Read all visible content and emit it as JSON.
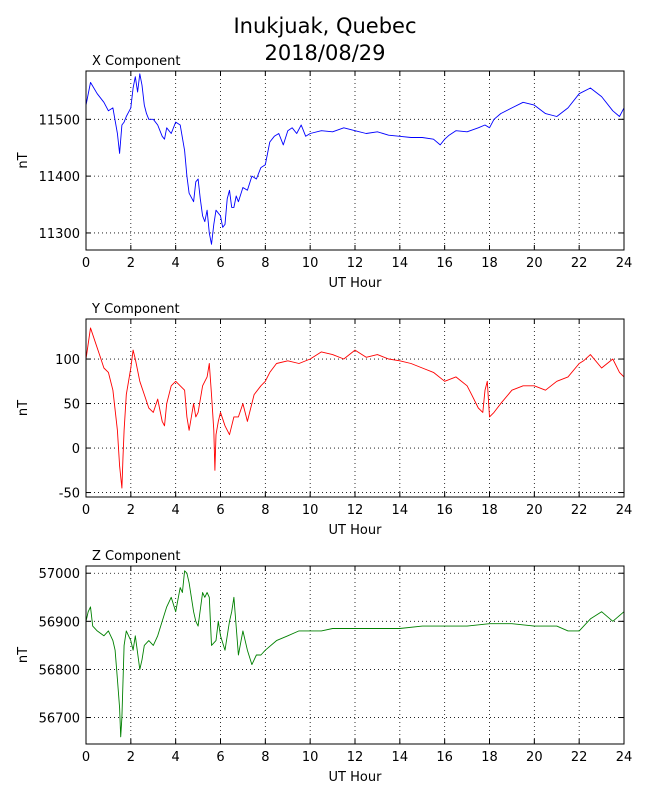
{
  "figure": {
    "title_line1": "Inukjuak, Quebec",
    "title_line2": "2018/08/29"
  },
  "chart_data": [
    {
      "type": "line",
      "title": "X Component",
      "xlabel": "UT Hour",
      "ylabel": "nT",
      "color": "#0000ff",
      "xlim": [
        0,
        24
      ],
      "ylim": [
        11270,
        11585
      ],
      "xticks": [
        0,
        2,
        4,
        6,
        8,
        10,
        12,
        14,
        16,
        18,
        20,
        22,
        24
      ],
      "yticks": [
        11300,
        11400,
        11500
      ],
      "grid": true,
      "series": [
        {
          "x": [
            0,
            0.2,
            0.5,
            0.8,
            1.0,
            1.2,
            1.4,
            1.5,
            1.6,
            1.7,
            1.8,
            2.0,
            2.1,
            2.2,
            2.3,
            2.4,
            2.5,
            2.6,
            2.7,
            2.8,
            3.0,
            3.2,
            3.4,
            3.5,
            3.6,
            3.8,
            4.0,
            4.2,
            4.4,
            4.5,
            4.6,
            4.8,
            4.9,
            5.0,
            5.1,
            5.2,
            5.3,
            5.4,
            5.5,
            5.6,
            5.7,
            5.8,
            6.0,
            6.1,
            6.2,
            6.3,
            6.4,
            6.5,
            6.6,
            6.7,
            6.8,
            7.0,
            7.2,
            7.4,
            7.6,
            7.8,
            8.0,
            8.2,
            8.4,
            8.6,
            8.8,
            9.0,
            9.2,
            9.4,
            9.6,
            9.8,
            10.0,
            10.5,
            11.0,
            11.5,
            12.0,
            12.5,
            13.0,
            13.5,
            14.0,
            14.5,
            15.0,
            15.5,
            15.8,
            16.0,
            16.2,
            16.5,
            17.0,
            17.5,
            17.8,
            18.0,
            18.2,
            18.5,
            19.0,
            19.5,
            20.0,
            20.5,
            21.0,
            21.5,
            22.0,
            22.5,
            23.0,
            23.5,
            23.8,
            24.0
          ],
          "y": [
            11525,
            11565,
            11545,
            11530,
            11515,
            11520,
            11475,
            11440,
            11490,
            11495,
            11505,
            11520,
            11555,
            11575,
            11548,
            11580,
            11560,
            11525,
            11510,
            11500,
            11500,
            11490,
            11470,
            11465,
            11485,
            11475,
            11495,
            11490,
            11445,
            11400,
            11370,
            11355,
            11390,
            11395,
            11360,
            11330,
            11320,
            11340,
            11300,
            11280,
            11315,
            11340,
            11330,
            11310,
            11315,
            11360,
            11375,
            11345,
            11345,
            11365,
            11355,
            11380,
            11375,
            11400,
            11395,
            11415,
            11420,
            11460,
            11470,
            11475,
            11455,
            11480,
            11485,
            11475,
            11490,
            11470,
            11475,
            11480,
            11478,
            11485,
            11480,
            11475,
            11478,
            11472,
            11470,
            11468,
            11468,
            11465,
            11455,
            11465,
            11472,
            11480,
            11478,
            11485,
            11490,
            11485,
            11500,
            11510,
            11520,
            11530,
            11525,
            11510,
            11505,
            11520,
            11545,
            11555,
            11540,
            11515,
            11505,
            11520
          ]
        }
      ]
    },
    {
      "type": "line",
      "title": "Y Component",
      "xlabel": "UT Hour",
      "ylabel": "nT",
      "color": "#ff0000",
      "xlim": [
        0,
        24
      ],
      "ylim": [
        -55,
        145
      ],
      "xticks": [
        0,
        2,
        4,
        6,
        8,
        10,
        12,
        14,
        16,
        18,
        20,
        22,
        24
      ],
      "yticks": [
        -50,
        0,
        50,
        100
      ],
      "grid": true,
      "series": [
        {
          "x": [
            0,
            0.2,
            0.4,
            0.6,
            0.8,
            1.0,
            1.2,
            1.4,
            1.5,
            1.6,
            1.65,
            1.7,
            1.8,
            2.0,
            2.1,
            2.2,
            2.4,
            2.6,
            2.8,
            3.0,
            3.2,
            3.4,
            3.5,
            3.6,
            3.8,
            4.0,
            4.2,
            4.4,
            4.5,
            4.6,
            4.8,
            4.9,
            5.0,
            5.2,
            5.4,
            5.5,
            5.6,
            5.7,
            5.75,
            5.8,
            5.9,
            6.0,
            6.2,
            6.4,
            6.6,
            6.8,
            7.0,
            7.2,
            7.5,
            7.8,
            8.0,
            8.2,
            8.5,
            9.0,
            9.5,
            10.0,
            10.5,
            11.0,
            11.5,
            12.0,
            12.5,
            13.0,
            13.5,
            14.0,
            14.5,
            15.0,
            15.5,
            16.0,
            16.5,
            17.0,
            17.2,
            17.5,
            17.7,
            17.8,
            17.9,
            18.0,
            18.2,
            18.5,
            19.0,
            19.5,
            20.0,
            20.5,
            21.0,
            21.5,
            22.0,
            22.2,
            22.5,
            23.0,
            23.5,
            23.8,
            24.0
          ],
          "y": [
            100,
            135,
            120,
            105,
            90,
            85,
            65,
            20,
            -20,
            -45,
            -10,
            20,
            60,
            90,
            110,
            100,
            75,
            60,
            45,
            40,
            55,
            30,
            25,
            50,
            70,
            75,
            70,
            65,
            35,
            20,
            50,
            35,
            40,
            70,
            80,
            95,
            60,
            20,
            -25,
            15,
            30,
            40,
            25,
            15,
            35,
            35,
            50,
            30,
            60,
            70,
            75,
            85,
            95,
            98,
            95,
            100,
            108,
            105,
            100,
            110,
            102,
            105,
            100,
            98,
            95,
            90,
            85,
            75,
            80,
            70,
            60,
            45,
            40,
            65,
            75,
            35,
            40,
            50,
            65,
            70,
            70,
            65,
            75,
            80,
            95,
            98,
            105,
            90,
            100,
            85,
            80
          ]
        }
      ]
    },
    {
      "type": "line",
      "title": "Z Component",
      "xlabel": "UT Hour",
      "ylabel": "nT",
      "color": "#008000",
      "xlim": [
        0,
        24
      ],
      "ylim": [
        56645,
        57015
      ],
      "xticks": [
        0,
        2,
        4,
        6,
        8,
        10,
        12,
        14,
        16,
        18,
        20,
        22,
        24
      ],
      "yticks": [
        56700,
        56800,
        56900,
        57000
      ],
      "grid": true,
      "series": [
        {
          "x": [
            0,
            0.1,
            0.2,
            0.3,
            0.5,
            0.8,
            1.0,
            1.2,
            1.3,
            1.4,
            1.5,
            1.55,
            1.6,
            1.7,
            1.8,
            2.0,
            2.1,
            2.2,
            2.4,
            2.5,
            2.6,
            2.8,
            3.0,
            3.2,
            3.4,
            3.6,
            3.8,
            4.0,
            4.2,
            4.3,
            4.4,
            4.5,
            4.6,
            4.8,
            4.9,
            5.0,
            5.2,
            5.3,
            5.4,
            5.5,
            5.6,
            5.8,
            5.9,
            6.0,
            6.2,
            6.4,
            6.5,
            6.6,
            6.8,
            7.0,
            7.2,
            7.4,
            7.6,
            7.8,
            8.0,
            8.5,
            9.0,
            9.5,
            10.0,
            10.5,
            11.0,
            11.5,
            12.0,
            13.0,
            14.0,
            15.0,
            16.0,
            17.0,
            18.0,
            19.0,
            20.0,
            21.0,
            21.5,
            22.0,
            22.5,
            23.0,
            23.5,
            24.0
          ],
          "y": [
            56900,
            56920,
            56930,
            56890,
            56880,
            56870,
            56880,
            56860,
            56840,
            56780,
            56720,
            56660,
            56700,
            56850,
            56880,
            56860,
            56840,
            56870,
            56800,
            56820,
            56850,
            56860,
            56850,
            56870,
            56900,
            56930,
            56950,
            56920,
            56970,
            56960,
            57005,
            57000,
            56980,
            56920,
            56900,
            56890,
            56960,
            56950,
            56960,
            56950,
            56850,
            56860,
            56900,
            56870,
            56840,
            56900,
            56920,
            56950,
            56830,
            56880,
            56840,
            56810,
            56830,
            56830,
            56840,
            56860,
            56870,
            56880,
            56880,
            56880,
            56885,
            56885,
            56885,
            56885,
            56885,
            56890,
            56890,
            56890,
            56895,
            56895,
            56890,
            56890,
            56880,
            56880,
            56905,
            56920,
            56900,
            56920
          ]
        }
      ]
    }
  ]
}
